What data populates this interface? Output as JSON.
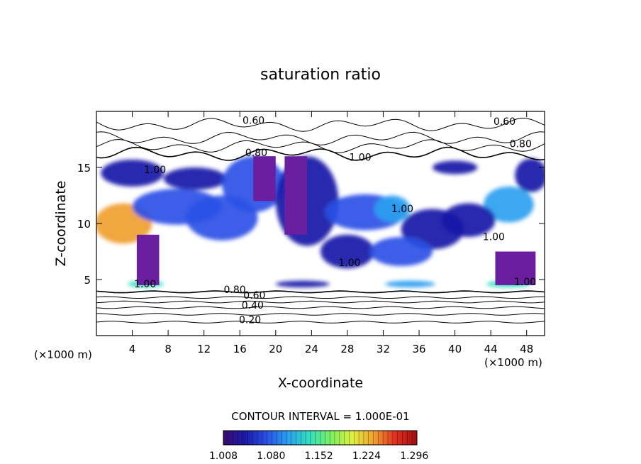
{
  "chart_data": {
    "type": "heatmap",
    "title": "saturation ratio",
    "xlabel": "X-coordinate",
    "ylabel": "Z-coordinate",
    "xunit_left": "(×1000 m)",
    "xunit_right": "(×1000 m)",
    "xlim": [
      0,
      50
    ],
    "ylim": [
      0,
      20
    ],
    "xticks": [
      4,
      8,
      12,
      16,
      20,
      24,
      28,
      32,
      36,
      40,
      44,
      48
    ],
    "yticks": [
      5,
      10,
      15
    ],
    "contour_interval_text": "CONTOUR INTERVAL = 1.000E-01",
    "colorbar": {
      "labels": [
        "1.008",
        "1.080",
        "1.152",
        "1.224",
        "1.296"
      ],
      "min": 1.008,
      "max": 1.3,
      "colors": [
        "#3a0a6e",
        "#1a1aa8",
        "#2a50e6",
        "#2aa0f0",
        "#30e0c0",
        "#7cf060",
        "#e0f040",
        "#f0a030",
        "#e03020",
        "#a01010"
      ]
    },
    "contour_labels": [
      {
        "text": "0.60",
        "x": 16.3,
        "y": 18.9
      },
      {
        "text": "0.60",
        "x": 44.3,
        "y": 18.8
      },
      {
        "text": "0.80",
        "x": 46.1,
        "y": 16.8
      },
      {
        "text": "0.80",
        "x": 16.6,
        "y": 16.0
      },
      {
        "text": "1.00",
        "x": 28.2,
        "y": 15.6
      },
      {
        "text": "1.00",
        "x": 5.3,
        "y": 14.5
      },
      {
        "text": "1.00",
        "x": 32.9,
        "y": 11.0
      },
      {
        "text": "1.00",
        "x": 43.1,
        "y": 8.5
      },
      {
        "text": "1.00",
        "x": 27.0,
        "y": 6.2
      },
      {
        "text": "1.00",
        "x": 4.2,
        "y": 4.3
      },
      {
        "text": "1.00",
        "x": 46.6,
        "y": 4.5
      },
      {
        "text": "0.80",
        "x": 14.2,
        "y": 3.8
      },
      {
        "text": "0.60",
        "x": 16.4,
        "y": 3.3
      },
      {
        "text": "0.40",
        "x": 16.2,
        "y": 2.4
      },
      {
        "text": "0.20",
        "x": 15.9,
        "y": 1.1
      }
    ],
    "supersaturated_regions": [
      {
        "x": 3.0,
        "z": 10.0,
        "rx": 3.2,
        "rz": 1.8,
        "value": 1.22
      },
      {
        "x": 9.0,
        "z": 11.5,
        "rx": 5.0,
        "rz": 1.6,
        "value": 1.06
      },
      {
        "x": 14.0,
        "z": 10.5,
        "rx": 4.0,
        "rz": 2.0,
        "value": 1.08
      },
      {
        "x": 4.0,
        "z": 14.5,
        "rx": 3.5,
        "rz": 1.2,
        "value": 1.05
      },
      {
        "x": 11.0,
        "z": 14.0,
        "rx": 3.5,
        "rz": 1.0,
        "value": 1.05
      },
      {
        "x": 17.5,
        "z": 13.5,
        "rx": 3.5,
        "rz": 2.5,
        "value": 1.07
      },
      {
        "x": 23.5,
        "z": 12.0,
        "rx": 3.5,
        "rz": 4.0,
        "value": 1.04
      },
      {
        "x": 30.0,
        "z": 11.0,
        "rx": 4.5,
        "rz": 1.6,
        "value": 1.06
      },
      {
        "x": 33.0,
        "z": 11.3,
        "rx": 2.0,
        "rz": 1.2,
        "value": 1.12
      },
      {
        "x": 37.5,
        "z": 9.5,
        "rx": 3.5,
        "rz": 1.8,
        "value": 1.05
      },
      {
        "x": 46.0,
        "z": 11.7,
        "rx": 2.8,
        "rz": 1.6,
        "value": 1.12
      },
      {
        "x": 41.5,
        "z": 10.3,
        "rx": 3.0,
        "rz": 1.5,
        "value": 1.05
      },
      {
        "x": 40.0,
        "z": 15.0,
        "rx": 2.5,
        "rz": 0.6,
        "value": 1.04
      },
      {
        "x": 48.5,
        "z": 14.3,
        "rx": 1.8,
        "rz": 1.5,
        "value": 1.05
      },
      {
        "x": 28.0,
        "z": 7.5,
        "rx": 3.0,
        "rz": 1.5,
        "value": 1.05
      },
      {
        "x": 34.0,
        "z": 7.5,
        "rx": 3.5,
        "rz": 1.3,
        "value": 1.06
      },
      {
        "x": 5.5,
        "z": 4.6,
        "rx": 2.0,
        "rz": 0.3,
        "value": 1.15
      },
      {
        "x": 23.0,
        "z": 4.6,
        "rx": 3.0,
        "rz": 0.3,
        "value": 1.05
      },
      {
        "x": 35.0,
        "z": 4.6,
        "rx": 2.8,
        "rz": 0.3,
        "value": 1.12
      },
      {
        "x": 46.0,
        "z": 4.6,
        "rx": 2.5,
        "rz": 0.3,
        "value": 1.13
      }
    ],
    "purple_columns": [
      {
        "x0": 4.5,
        "x1": 7.0,
        "z0": 4.5,
        "z1": 9.0
      },
      {
        "x0": 17.5,
        "x1": 20.0,
        "z0": 12.0,
        "z1": 16.0
      },
      {
        "x0": 21.0,
        "x1": 23.5,
        "z0": 9.0,
        "z1": 16.0
      },
      {
        "x0": 44.5,
        "x1": 49.0,
        "z0": 4.5,
        "z1": 7.5
      }
    ],
    "contour_lines_z": [
      1.2,
      1.9,
      2.5,
      3.0,
      3.4,
      3.9,
      16.2,
      16.9,
      17.6,
      18.8
    ]
  }
}
